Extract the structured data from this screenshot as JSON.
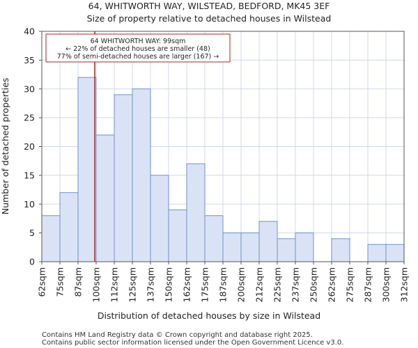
{
  "chart_data": {
    "type": "bar",
    "title_line1": "64, WHITWORTH WAY, WILSTEAD, BEDFORD, MK45 3EF",
    "title_line2": "Size of property relative to detached houses in Wilstead",
    "xlabel": "Distribution of detached houses by size in Wilstead",
    "ylabel": "Number of detached properties",
    "ylim": [
      0,
      40
    ],
    "yticks": [
      0,
      5,
      10,
      15,
      20,
      25,
      30,
      35,
      40
    ],
    "bin_edges": [
      62,
      75,
      87,
      100,
      112,
      125,
      137,
      150,
      162,
      175,
      187,
      200,
      212,
      225,
      237,
      250,
      262,
      275,
      287,
      300,
      312
    ],
    "xtick_labels": [
      "62sqm",
      "75sqm",
      "87sqm",
      "100sqm",
      "112sqm",
      "125sqm",
      "137sqm",
      "150sqm",
      "162sqm",
      "175sqm",
      "187sqm",
      "200sqm",
      "212sqm",
      "225sqm",
      "237sqm",
      "250sqm",
      "262sqm",
      "275sqm",
      "287sqm",
      "300sqm",
      "312sqm"
    ],
    "values": [
      8,
      12,
      32,
      22,
      29,
      30,
      15,
      9,
      17,
      8,
      5,
      5,
      7,
      4,
      5,
      0,
      4,
      0,
      3,
      3
    ],
    "property_marker_sqm": 99,
    "annotation": {
      "line1": "64 WHITWORTH WAY: 99sqm",
      "line2": "← 22% of detached houses are smaller (48)",
      "line3": "77% of semi-detached houses are larger (167) →"
    },
    "colors": {
      "bar_fill": "#dae3f5",
      "bar_edge": "#6f8fcf",
      "marker": "#b22222",
      "grid": "#d0d8e8"
    }
  },
  "footer": {
    "line1": "Contains HM Land Registry data © Crown copyright and database right 2025.",
    "line2": "Contains public sector information licensed under the Open Government Licence v3.0."
  }
}
